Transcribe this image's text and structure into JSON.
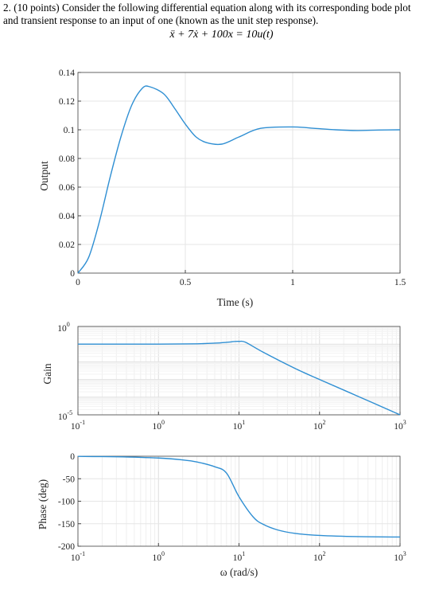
{
  "question": {
    "text_line1": "2. (10 points) Consider the following differential equation along with its corresponding bode plot",
    "text_line2": "and transient response to an input of one (known as the unit step response).",
    "equation": "ẍ + 7ẋ + 100x = 10u(t)"
  },
  "colors": {
    "line": "#2f8fd3",
    "axis": "#444444",
    "grid": "#e6e6e6"
  },
  "chart_data": [
    {
      "type": "line",
      "title": "",
      "xlabel": "Time (s)",
      "ylabel": "Output",
      "xlim": [
        0,
        1.5
      ],
      "ylim": [
        0,
        0.14
      ],
      "xticks": [
        "0",
        "0.5",
        "1",
        "1.5"
      ],
      "yticks": [
        "0",
        "0.02",
        "0.04",
        "0.06",
        "0.08",
        "0.1",
        "0.12",
        "0.14"
      ],
      "grid": true,
      "series": [
        {
          "x": [
            0,
            0.05,
            0.1,
            0.15,
            0.2,
            0.25,
            0.3,
            0.335,
            0.4,
            0.45,
            0.5,
            0.55,
            0.6,
            0.67,
            0.75,
            0.85,
            1.0,
            1.1,
            1.2,
            1.3,
            1.4,
            1.5
          ],
          "y": [
            0,
            0.011,
            0.036,
            0.067,
            0.095,
            0.117,
            0.129,
            0.13,
            0.125,
            0.115,
            0.104,
            0.095,
            0.091,
            0.09,
            0.095,
            0.101,
            0.102,
            0.101,
            0.1,
            0.0995,
            0.0998,
            0.1
          ]
        }
      ]
    },
    {
      "type": "line",
      "title": "",
      "xlabel": "",
      "ylabel": "Gain",
      "xscale": "log",
      "yscale": "log",
      "xlim": [
        0.1,
        1000
      ],
      "ylim": [
        1e-05,
        1
      ],
      "xticks": [
        "10",
        "10",
        "10",
        "10",
        "10"
      ],
      "xtick_exponents": [
        "-1",
        "0",
        "1",
        "2",
        "3"
      ],
      "yticks": [
        "10",
        "10"
      ],
      "ytick_exponents": [
        "0",
        "-5"
      ],
      "grid": true,
      "series": [
        {
          "x": [
            0.1,
            1,
            3,
            5,
            7,
            9,
            10,
            12,
            20,
            50,
            100,
            300,
            1000
          ],
          "y": [
            0.1,
            0.1001,
            0.1045,
            0.1135,
            0.1265,
            0.1416,
            0.1429,
            0.1285,
            0.0347,
            0.00415,
            0.001,
            0.000112,
            1e-05
          ]
        }
      ]
    },
    {
      "type": "line",
      "title": "",
      "xlabel": "ω (rad/s)",
      "ylabel": "Phase (deg)",
      "xscale": "log",
      "xlim": [
        0.1,
        1000
      ],
      "ylim": [
        -200,
        0
      ],
      "xticks": [
        "10",
        "10",
        "10",
        "10",
        "10"
      ],
      "xtick_exponents": [
        "-1",
        "0",
        "1",
        "2",
        "3"
      ],
      "yticks": [
        "0",
        "-50",
        "-100",
        "-150",
        "-200"
      ],
      "grid": true,
      "series": [
        {
          "x": [
            0.1,
            0.3,
            1,
            2,
            3,
            5,
            7,
            10,
            15,
            20,
            30,
            50,
            100,
            300,
            1000
          ],
          "y": [
            -0.4,
            -1.2,
            -4.0,
            -8.2,
            -12.7,
            -23.3,
            -37.5,
            -90,
            -135.0,
            -151.4,
            -163.7,
            -171.6,
            -176.0,
            -178.7,
            -179.6
          ]
        }
      ]
    }
  ]
}
